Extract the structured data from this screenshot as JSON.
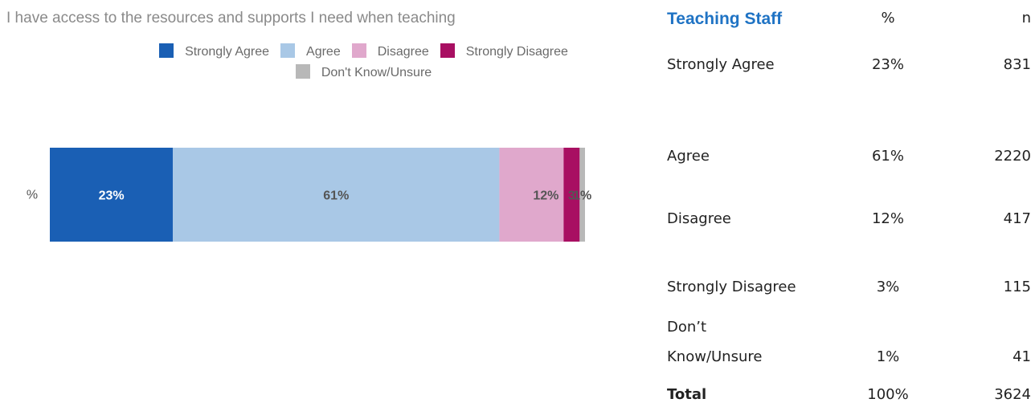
{
  "chart_data": {
    "type": "bar",
    "orientation": "horizontal",
    "stacked": true,
    "title": "I have access to the resources and supports I need when teaching",
    "categories": [
      "%"
    ],
    "series": [
      {
        "name": "Strongly Agree",
        "values": [
          23
        ],
        "label": "23%",
        "color": "#1a5fb4"
      },
      {
        "name": "Agree",
        "values": [
          61
        ],
        "label": "61%",
        "color": "#a9c8e6"
      },
      {
        "name": "Disagree",
        "values": [
          12
        ],
        "label": "12%",
        "color": "#e0a8cc"
      },
      {
        "name": "Strongly Disagree",
        "values": [
          3
        ],
        "label": "3",
        "color": "#a80f62"
      },
      {
        "name": "Don't Know/Unsure",
        "values": [
          1
        ],
        "label": "1%",
        "color": "#b8b8b8"
      }
    ],
    "legend_position": "top",
    "xlim": [
      0,
      100
    ]
  },
  "table": {
    "header": {
      "title": "Teaching Staff",
      "pct": "%",
      "n": "n"
    },
    "rows": [
      {
        "label": "Strongly Agree",
        "pct": "23%",
        "n": "831"
      },
      {
        "label": "Agree",
        "pct": "61%",
        "n": "2220"
      },
      {
        "label": "Disagree",
        "pct": "12%",
        "n": "417"
      },
      {
        "label": "Strongly Disagree",
        "pct": "3%",
        "n": "115"
      },
      {
        "label_line1": "Don’t",
        "label_line2": "Know/Unsure",
        "pct": "1%",
        "n": "41"
      },
      {
        "label": "Total",
        "pct": "100%",
        "n": "3624"
      }
    ]
  }
}
